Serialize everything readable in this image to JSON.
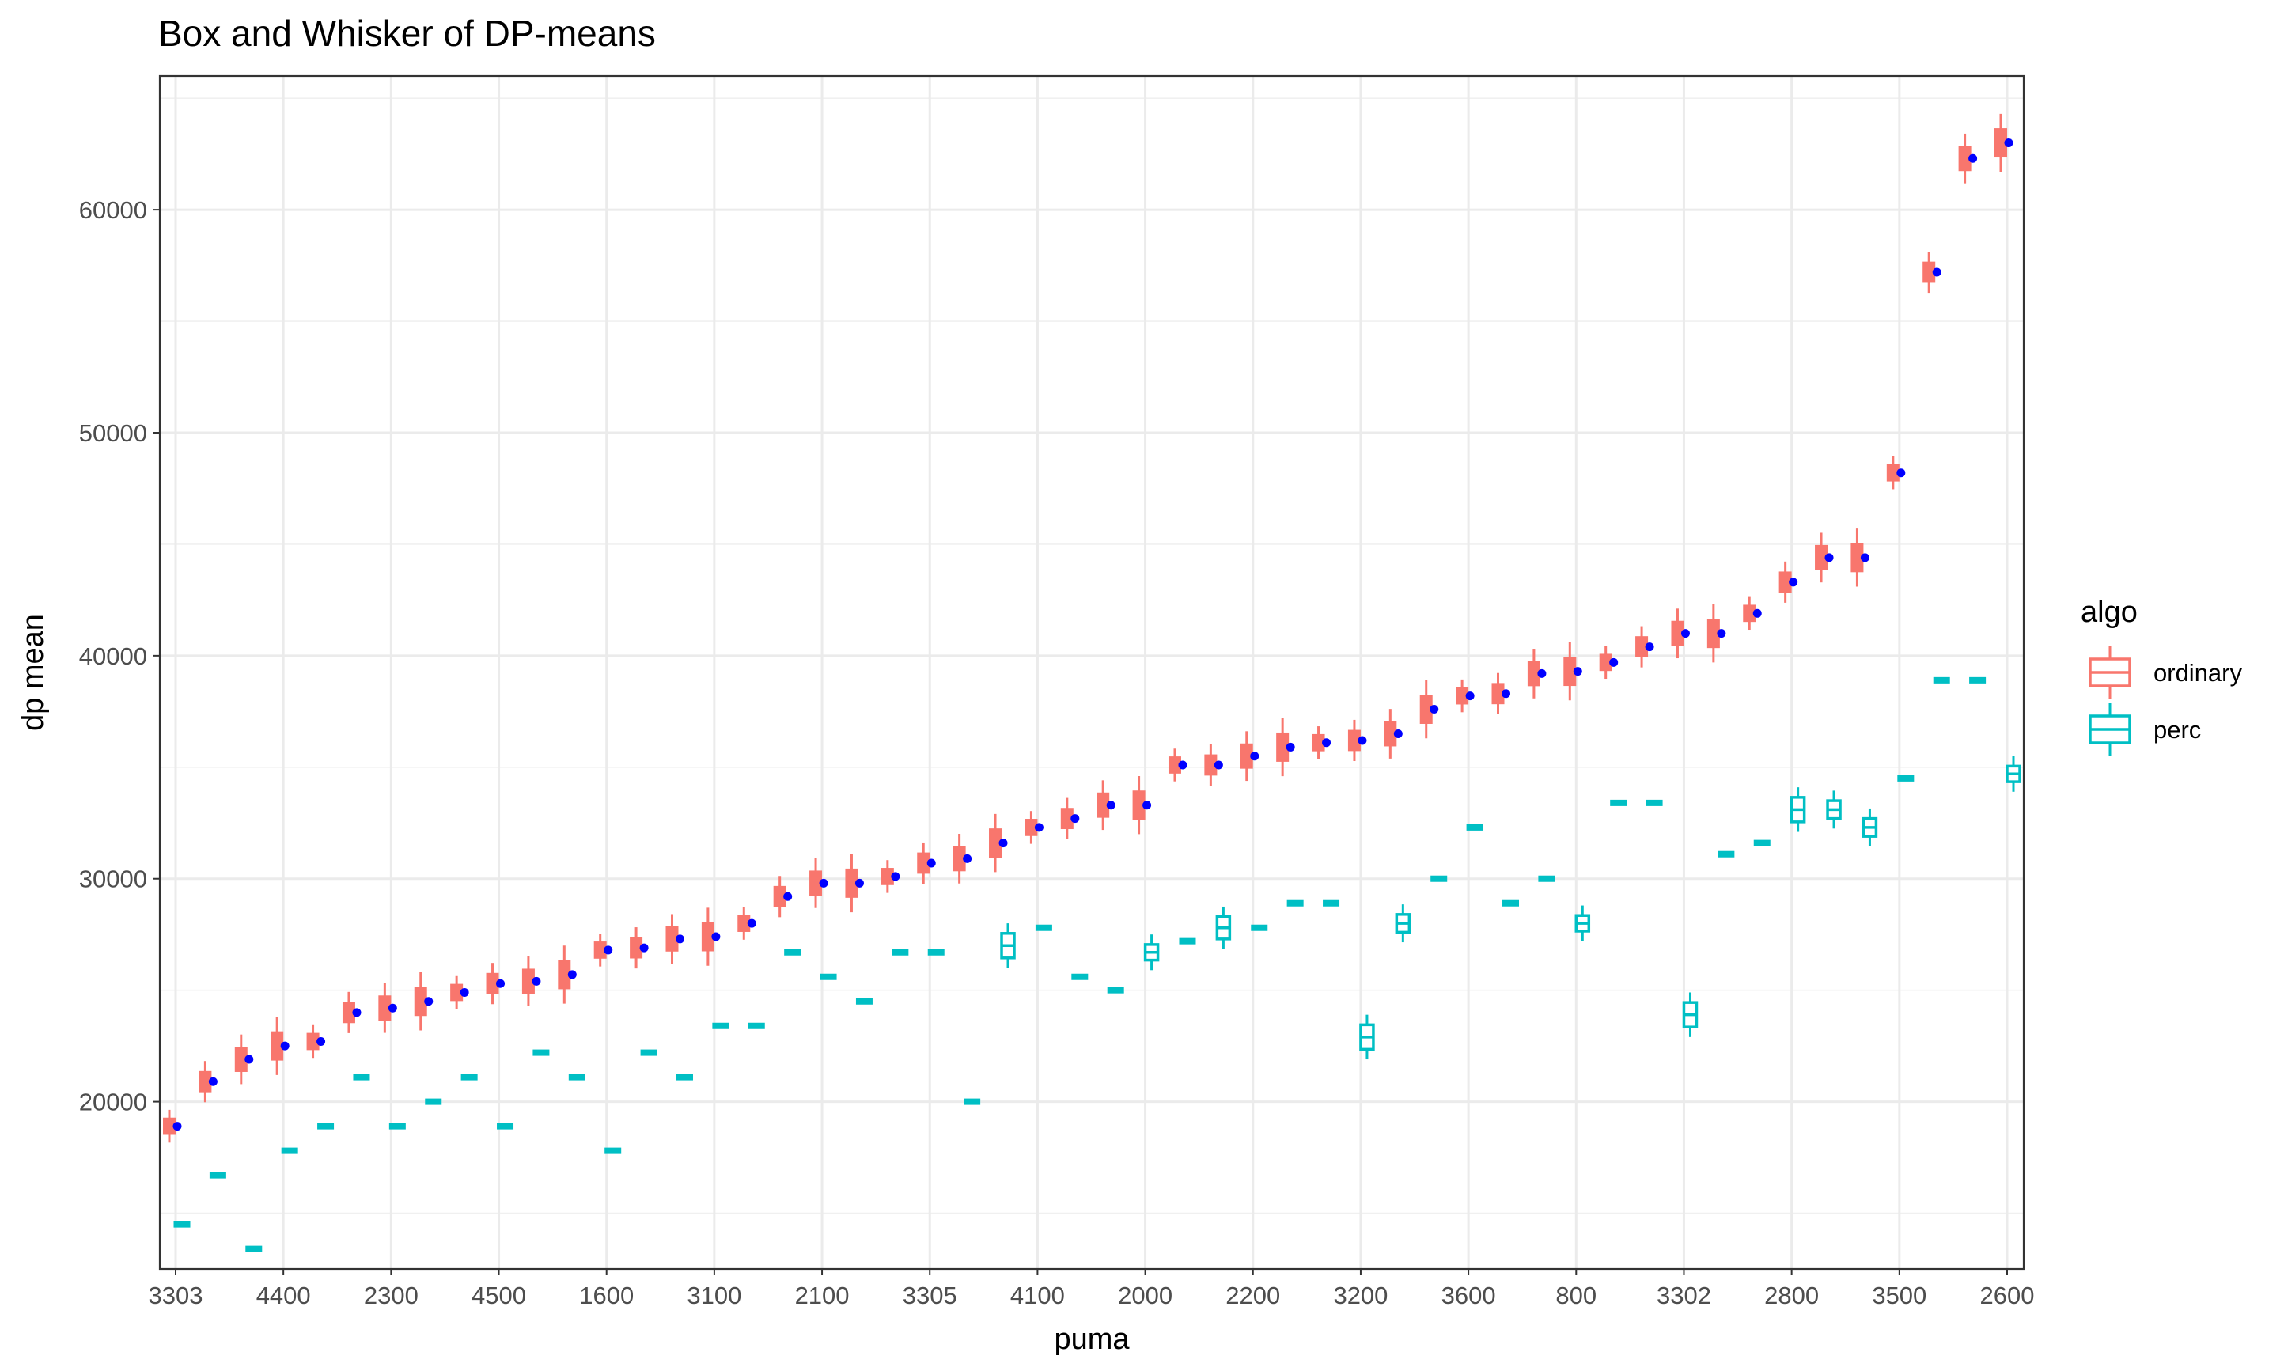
{
  "chart_data": {
    "type": "box",
    "title": "Box and Whisker of DP-means",
    "xlabel": "puma",
    "ylabel": "dp mean",
    "ylim": [
      12500,
      66000
    ],
    "y_ticks": [
      20000,
      30000,
      40000,
      50000,
      60000
    ],
    "grid": true,
    "legend": {
      "title": "algo",
      "position": "right",
      "entries": [
        "ordinary",
        "perc"
      ]
    },
    "colors": {
      "ordinary": "#F8766D",
      "perc": "#00BFC4",
      "mean_point": "#0000FF"
    },
    "x_tick_labels": [
      "3303",
      "4400",
      "2300",
      "4500",
      "1600",
      "3100",
      "2100",
      "3305",
      "4100",
      "2000",
      "2200",
      "3200",
      "3600",
      "800",
      "3302",
      "2800",
      "3500",
      "2600"
    ],
    "n_categories": 52,
    "ordinary_means": [
      18900,
      20900,
      21900,
      22500,
      22700,
      24000,
      24200,
      24500,
      24900,
      25300,
      25400,
      25700,
      26800,
      26900,
      27300,
      27400,
      28000,
      29200,
      29800,
      29800,
      30100,
      30700,
      30900,
      31600,
      32300,
      32700,
      33300,
      33300,
      35100,
      35100,
      35500,
      35900,
      36100,
      36200,
      36500,
      37600,
      38200,
      38300,
      39200,
      39300,
      39700,
      40400,
      41000,
      41000,
      41900,
      43300,
      44400,
      44400,
      48200,
      57200,
      62300,
      63000
    ],
    "perc_medians": [
      14500,
      16700,
      13400,
      17800,
      18900,
      21100,
      18900,
      20000,
      21100,
      18900,
      22200,
      21100,
      17800,
      22200,
      21100,
      23400,
      23400,
      26700,
      25600,
      24500,
      26700,
      26700,
      20000,
      27000,
      27800,
      25600,
      25000,
      26700,
      27200,
      27800,
      27800,
      28900,
      28900,
      22900,
      28000,
      30000,
      32300,
      28900,
      30000,
      28000,
      33400,
      33400,
      23900,
      31100,
      31600,
      33100,
      33100,
      32300,
      34500,
      38900,
      38900,
      34700
    ],
    "perc_boxed_indices": [
      23,
      27,
      29,
      33,
      34,
      39,
      42,
      45,
      46,
      47,
      51
    ]
  }
}
